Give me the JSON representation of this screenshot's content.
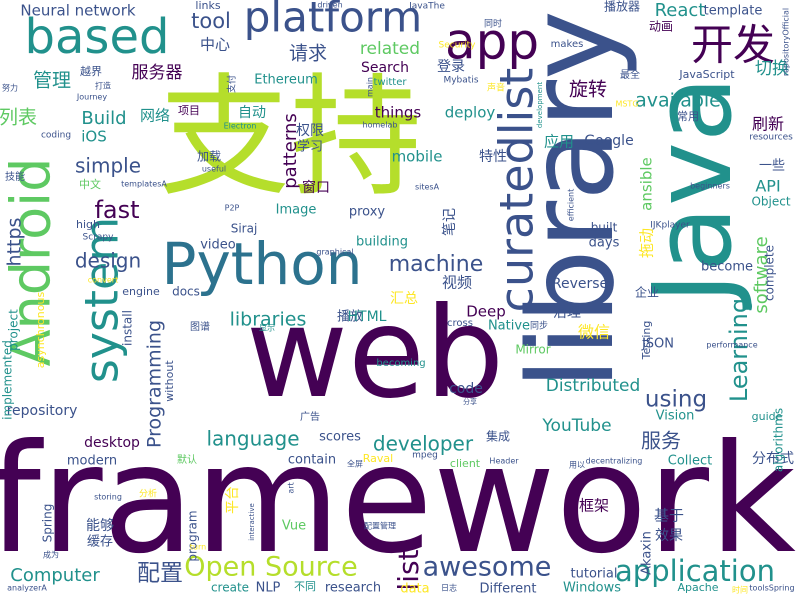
{
  "wordcloud": {
    "palette": {
      "dark_purple": "#440154",
      "indigo": "#3b528b",
      "teal": "#21918c",
      "green": "#5ec962",
      "lime": "#b5de2b",
      "yellow": "#fde725"
    },
    "words": [
      {
        "text": "framework",
        "color": "#440154"
      },
      {
        "text": "web",
        "color": "#440154"
      },
      {
        "text": "支持",
        "color": "#b5de2b"
      },
      {
        "text": "library",
        "color": "#3b528b"
      },
      {
        "text": "Java",
        "color": "#21918c"
      },
      {
        "text": "Python",
        "color": "#2c728e"
      },
      {
        "text": "Android",
        "color": "#5ec962"
      },
      {
        "text": "curatedlist",
        "color": "#3b528b"
      },
      {
        "text": "platform",
        "color": "#3b528b"
      },
      {
        "text": "app",
        "color": "#440154"
      },
      {
        "text": "based",
        "color": "#21918c"
      },
      {
        "text": "system",
        "color": "#21918c"
      },
      {
        "text": "开发",
        "color": "#440154"
      },
      {
        "text": "application",
        "color": "#21918c"
      },
      {
        "text": "Open Source",
        "color": "#b5de2b"
      },
      {
        "text": "awesome",
        "color": "#3b528b"
      },
      {
        "text": "list",
        "color": "#440154"
      },
      {
        "text": "配置",
        "color": "#3b528b"
      },
      {
        "text": "Computer",
        "color": "#21918c"
      },
      {
        "text": "libraries",
        "color": "#21918c"
      },
      {
        "text": "machine",
        "color": "#3b528b"
      },
      {
        "text": "language",
        "color": "#21918c"
      },
      {
        "text": "developer",
        "color": "#21918c"
      },
      {
        "text": "Learning",
        "color": "#21918c"
      },
      {
        "text": "using",
        "color": "#3b528b"
      },
      {
        "text": "software",
        "color": "#5ec962"
      },
      {
        "text": "Programming",
        "color": "#3b528b"
      },
      {
        "text": "design",
        "color": "#3b528b"
      },
      {
        "text": "fast",
        "color": "#440154"
      },
      {
        "text": "simple",
        "color": "#3b528b"
      },
      {
        "text": "Build",
        "color": "#21918c"
      },
      {
        "text": "tool",
        "color": "#3b528b"
      },
      {
        "text": "patterns",
        "color": "#440154"
      },
      {
        "text": "https",
        "color": "#3b528b"
      },
      {
        "text": "available",
        "color": "#21918c"
      },
      {
        "text": "管理",
        "color": "#21918c"
      },
      {
        "text": "列表",
        "color": "#5ec962"
      },
      {
        "text": "请求",
        "color": "#3b528b"
      },
      {
        "text": "服务器",
        "color": "#440154"
      },
      {
        "text": "服务",
        "color": "#3b528b"
      },
      {
        "text": "related",
        "color": "#5ec962"
      },
      {
        "text": "YouTube",
        "color": "#21918c"
      },
      {
        "text": "Distributed",
        "color": "#21918c"
      },
      {
        "text": "旋转",
        "color": "#440154"
      },
      {
        "text": "React",
        "color": "#21918c"
      },
      {
        "text": "Neural network",
        "color": "#3b528b"
      },
      {
        "text": "Search",
        "color": "#440154"
      },
      {
        "text": "deploy",
        "color": "#21918c"
      },
      {
        "text": "things",
        "color": "#440154"
      },
      {
        "text": "mobile",
        "color": "#21918c"
      },
      {
        "text": "Deep",
        "color": "#440154"
      },
      {
        "text": "Native",
        "color": "#21918c"
      },
      {
        "text": "切换",
        "color": "#21918c"
      },
      {
        "text": "刷新",
        "color": "#440154"
      },
      {
        "text": "API",
        "color": "#21918c"
      },
      {
        "text": "ansible",
        "color": "#5ec962"
      },
      {
        "text": "Google",
        "color": "#3b528b"
      },
      {
        "text": "Reverse",
        "color": "#3b528b"
      },
      {
        "text": "desktop",
        "color": "#440154"
      },
      {
        "text": "modern",
        "color": "#3b528b"
      },
      {
        "text": "scores",
        "color": "#3b528b"
      },
      {
        "text": "contain",
        "color": "#3b528b"
      },
      {
        "text": "code",
        "color": "#3b528b"
      },
      {
        "text": "repository",
        "color": "#3b528b"
      },
      {
        "text": "Collect",
        "color": "#21918c"
      },
      {
        "text": "Vision",
        "color": "#21918c"
      },
      {
        "text": "tutorial",
        "color": "#3b528b"
      },
      {
        "text": "Different",
        "color": "#3b528b"
      },
      {
        "text": "research",
        "color": "#3b528b"
      },
      {
        "text": "Windows",
        "color": "#21918c"
      },
      {
        "text": "框架",
        "color": "#440154"
      },
      {
        "text": "微信",
        "color": "#fde725"
      },
      {
        "text": "视频",
        "color": "#3b528b"
      },
      {
        "text": "窗口",
        "color": "#440154"
      },
      {
        "text": "笔记",
        "color": "#3b528b"
      },
      {
        "text": "Akaxin",
        "color": "#3b528b"
      },
      {
        "text": "JSON",
        "color": "#3b528b"
      },
      {
        "text": "video",
        "color": "#3b528b"
      },
      {
        "text": "docs",
        "color": "#3b528b"
      },
      {
        "text": "Image",
        "color": "#21918c"
      },
      {
        "text": "proxy",
        "color": "#3b528b"
      },
      {
        "text": "building",
        "color": "#21918c"
      },
      {
        "text": "days",
        "color": "#3b528b"
      },
      {
        "text": "built",
        "color": "#3b528b"
      },
      {
        "text": "become",
        "color": "#3b528b"
      },
      {
        "text": "Object",
        "color": "#21918c"
      },
      {
        "text": "iOS",
        "color": "#21918c"
      },
      {
        "text": "网络",
        "color": "#21918c"
      },
      {
        "text": "自动",
        "color": "#21918c"
      },
      {
        "text": "权限",
        "color": "#3b528b"
      },
      {
        "text": "学习",
        "color": "#3b528b"
      },
      {
        "text": "特性",
        "color": "#3b528b"
      },
      {
        "text": "应用",
        "color": "#21918c"
      },
      {
        "text": "中心",
        "color": "#3b528b"
      },
      {
        "text": "登录",
        "color": "#3b528b"
      },
      {
        "text": "拖动",
        "color": "#fde725"
      },
      {
        "text": "播放",
        "color": "#3b528b"
      },
      {
        "text": "汇总",
        "color": "#fde725"
      },
      {
        "text": "企业",
        "color": "#3b528b"
      },
      {
        "text": "治理",
        "color": "#3b528b"
      },
      {
        "text": "集成",
        "color": "#3b528b"
      },
      {
        "text": "分布式",
        "color": "#3b528b"
      },
      {
        "text": "基于",
        "color": "#3b528b"
      },
      {
        "text": "效果",
        "color": "#3b528b"
      },
      {
        "text": "能够",
        "color": "#3b528b"
      },
      {
        "text": "缓存",
        "color": "#3b528b"
      },
      {
        "text": "平台",
        "color": "#fde725"
      },
      {
        "text": "Spring",
        "color": "#3b528b"
      },
      {
        "text": "Vue",
        "color": "#5ec962"
      },
      {
        "text": "NLP",
        "color": "#3b528b"
      },
      {
        "text": "create",
        "color": "#21918c"
      },
      {
        "text": "template",
        "color": "#3b528b"
      },
      {
        "text": "一些",
        "color": "#3b528b"
      },
      {
        "text": "HTML",
        "color": "#21918c"
      },
      {
        "text": "Mirror",
        "color": "#5ec962"
      },
      {
        "text": "Testing",
        "color": "#3b528b"
      },
      {
        "text": "complete",
        "color": "#3b528b"
      },
      {
        "text": "guide",
        "color": "#21918c"
      },
      {
        "text": "algorithms",
        "color": "#21918c"
      },
      {
        "text": "program",
        "color": "#3b528b"
      },
      {
        "text": "engine",
        "color": "#3b528b"
      },
      {
        "text": "install",
        "color": "#3b528b"
      },
      {
        "text": "without",
        "color": "#3b528b"
      },
      {
        "text": "implemented",
        "color": "#21918c"
      },
      {
        "text": "asynchronous",
        "color": "#fde725"
      },
      {
        "text": "project",
        "color": "#21918c"
      },
      {
        "text": "Siraj",
        "color": "#3b528b"
      },
      {
        "text": "播放器",
        "color": "#3b528b"
      },
      {
        "text": "动画",
        "color": "#440154"
      },
      {
        "text": "JavaScript",
        "color": "#3b528b"
      },
      {
        "text": "最全",
        "color": "#3b528b"
      },
      {
        "text": "常用",
        "color": "#3b528b"
      },
      {
        "text": "makes",
        "color": "#3b528b"
      },
      {
        "text": "links",
        "color": "#3b528b"
      },
      {
        "text": "Ethereum",
        "color": "#21918c"
      },
      {
        "text": "项目",
        "color": "#440154"
      },
      {
        "text": "加载",
        "color": "#3b528b"
      },
      {
        "text": "中文",
        "color": "#5ec962"
      },
      {
        "text": "技能",
        "color": "#3b528b"
      },
      {
        "text": "coding",
        "color": "#3b528b"
      },
      {
        "text": "high",
        "color": "#3b528b"
      },
      {
        "text": "Scrapy",
        "color": "#3b528b"
      },
      {
        "text": "P2P",
        "color": "#3b528b"
      },
      {
        "text": "IJKplayer",
        "color": "#3b528b"
      },
      {
        "text": "beginners",
        "color": "#3b528b"
      },
      {
        "text": "resources",
        "color": "#3b528b"
      },
      {
        "text": "repositoryOfficial",
        "color": "#3b528b"
      },
      {
        "text": "performance",
        "color": "#3b528b"
      },
      {
        "text": "toolsSpring",
        "color": "#3b528b"
      },
      {
        "text": "analyzerA",
        "color": "#3b528b"
      },
      {
        "text": "Header",
        "color": "#3b528b"
      },
      {
        "text": "decentralizing",
        "color": "#3b528b"
      },
      {
        "text": "mpeg",
        "color": "#3b528b"
      },
      {
        "text": "client",
        "color": "#5ec962"
      },
      {
        "text": "Raval",
        "color": "#fde725"
      },
      {
        "text": "storing",
        "color": "#3b528b"
      },
      {
        "text": "分析",
        "color": "#fde725"
      },
      {
        "text": "成为",
        "color": "#3b528b"
      },
      {
        "text": "配置管理",
        "color": "#3b528b"
      },
      {
        "text": "interactive",
        "color": "#3b528b"
      },
      {
        "text": "turn",
        "color": "#fde725"
      },
      {
        "text": "art",
        "color": "#3b528b"
      },
      {
        "text": "graphical",
        "color": "#3b528b"
      },
      {
        "text": "convert",
        "color": "#fde725"
      },
      {
        "text": "图谱",
        "color": "#3b528b"
      },
      {
        "text": "显示",
        "color": "#21918c"
      },
      {
        "text": "cross",
        "color": "#3b528b"
      },
      {
        "text": "同步",
        "color": "#3b528b"
      },
      {
        "text": "becoming",
        "color": "#21918c"
      },
      {
        "text": "广告",
        "color": "#3b528b"
      },
      {
        "text": "默认",
        "color": "#5ec962"
      },
      {
        "text": "全屏",
        "color": "#3b528b"
      },
      {
        "text": "分享",
        "color": "#3b528b"
      },
      {
        "text": "用以",
        "color": "#3b528b"
      },
      {
        "text": "不同",
        "color": "#21918c"
      },
      {
        "text": "data",
        "color": "#fde725"
      },
      {
        "text": "日志",
        "color": "#3b528b"
      },
      {
        "text": "Apache",
        "color": "#21918c"
      },
      {
        "text": "时间",
        "color": "#fde725"
      },
      {
        "text": "useful",
        "color": "#3b528b"
      },
      {
        "text": "Electron",
        "color": "#21918c"
      },
      {
        "text": "templatesA",
        "color": "#3b528b"
      },
      {
        "text": "sitesA",
        "color": "#3b528b"
      },
      {
        "text": "efficient",
        "color": "#3b528b"
      },
      {
        "text": "homelab",
        "color": "#3b528b"
      },
      {
        "text": "twitter",
        "color": "#21918c"
      },
      {
        "text": "Mybatis",
        "color": "#3b528b"
      },
      {
        "text": "Security",
        "color": "#fde725"
      },
      {
        "text": "同时",
        "color": "#3b528b"
      },
      {
        "text": "JavaThe",
        "color": "#3b528b"
      },
      {
        "text": "driven",
        "color": "#3b528b"
      },
      {
        "text": "development",
        "color": "#21918c"
      },
      {
        "text": "main",
        "color": "#3b528b"
      },
      {
        "text": "MSTG",
        "color": "#fde725"
      },
      {
        "text": "声音",
        "color": "#fde725"
      },
      {
        "text": "越界",
        "color": "#3b528b"
      },
      {
        "text": "打造",
        "color": "#3b528b"
      },
      {
        "text": "Journey",
        "color": "#3b528b"
      },
      {
        "text": "努力",
        "color": "#3b528b"
      },
      {
        "text": "支付",
        "color": "#3b528b"
      }
    ]
  }
}
